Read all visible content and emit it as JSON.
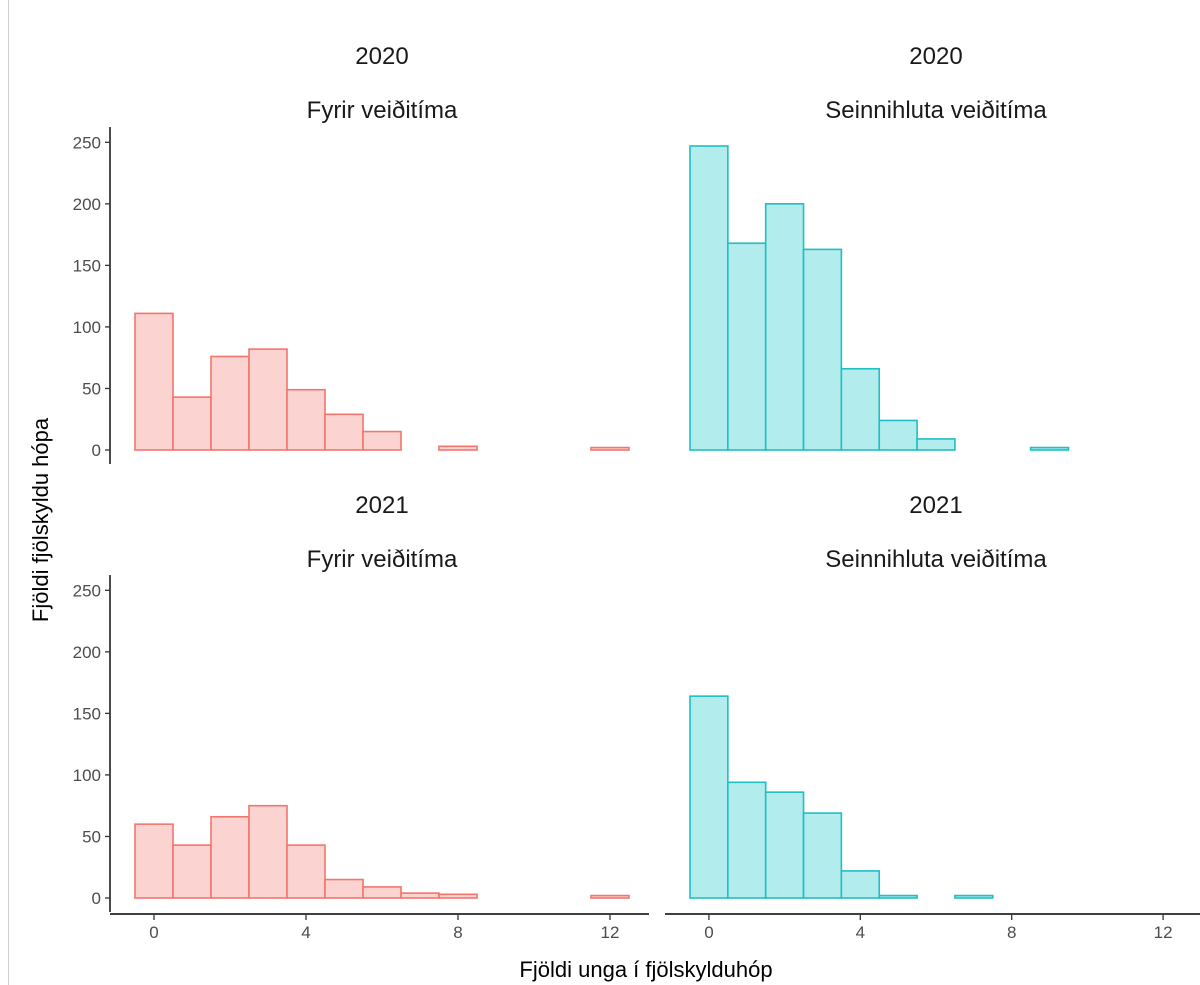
{
  "chart_data": {
    "type": "bar",
    "xlabel": "Fjöldi unga í fjölskylduhóp",
    "ylabel": "Fjöldi fjölskyldu hópa",
    "ylim": [
      0,
      260
    ],
    "yticks": [
      0,
      50,
      100,
      150,
      200,
      250
    ],
    "xlim": [
      -0.5,
      12.5
    ],
    "xticks": [
      0,
      4,
      8,
      12
    ],
    "bin_width": 1,
    "grid": false,
    "colors": {
      "Fyrir veiðitíma": {
        "fill": "#fbd3d1",
        "stroke": "#f2766e"
      },
      "Seinnihluta veiðitíma": {
        "fill": "#b2ecec",
        "stroke": "#1fbfc4"
      }
    },
    "panels": [
      {
        "year": "2020",
        "period": "Fyrir veiðitíma",
        "bins": [
          0,
          1,
          2,
          3,
          4,
          5,
          6,
          7,
          8,
          9,
          10,
          11,
          12
        ],
        "values": [
          111,
          43,
          76,
          82,
          49,
          29,
          15,
          0,
          3,
          0,
          0,
          0,
          2
        ]
      },
      {
        "year": "2020",
        "period": "Seinnihluta veiðitíma",
        "bins": [
          0,
          1,
          2,
          3,
          4,
          5,
          6,
          7,
          8,
          9,
          10,
          11,
          12
        ],
        "values": [
          247,
          168,
          200,
          163,
          66,
          24,
          9,
          0,
          0,
          2,
          0,
          0,
          0
        ]
      },
      {
        "year": "2021",
        "period": "Fyrir veiðitíma",
        "bins": [
          0,
          1,
          2,
          3,
          4,
          5,
          6,
          7,
          8,
          9,
          10,
          11,
          12
        ],
        "values": [
          60,
          43,
          66,
          75,
          43,
          15,
          9,
          4,
          3,
          0,
          0,
          0,
          2
        ]
      },
      {
        "year": "2021",
        "period": "Seinnihluta veiðitíma",
        "bins": [
          0,
          1,
          2,
          3,
          4,
          5,
          6,
          7,
          8,
          9,
          10,
          11,
          12
        ],
        "values": [
          164,
          94,
          86,
          69,
          22,
          2,
          0,
          2,
          0,
          0,
          0,
          0,
          0
        ]
      }
    ]
  }
}
